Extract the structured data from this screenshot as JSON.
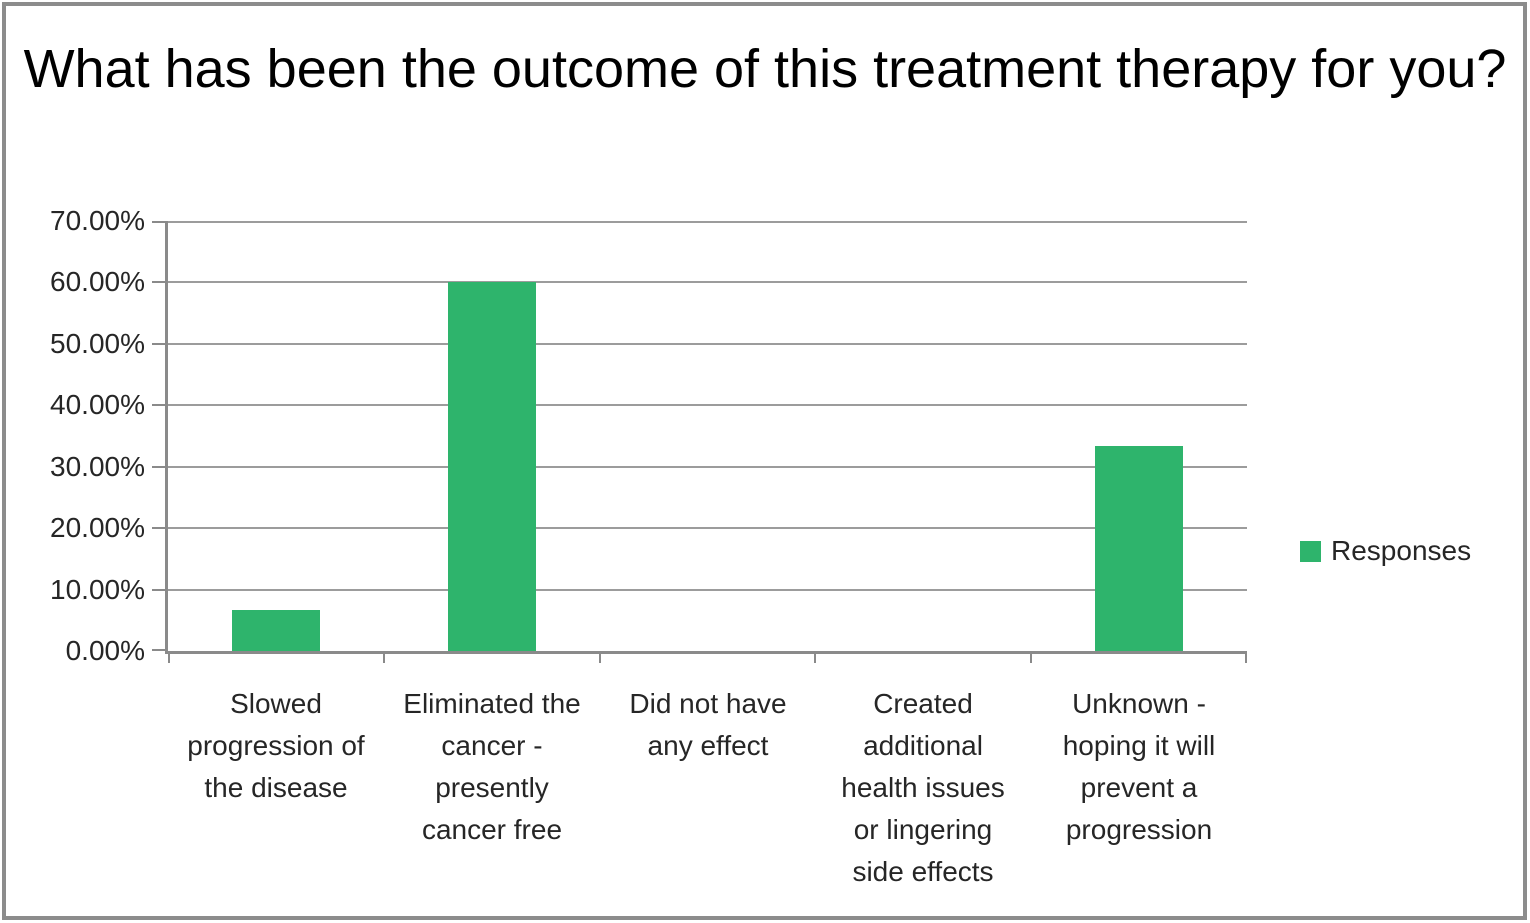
{
  "chart_data": {
    "type": "bar",
    "title": "What has been the outcome of this treatment therapy for you?",
    "categories": [
      "Slowed progression of the disease",
      "Eliminated the cancer - presently cancer free",
      "Did not have any effect",
      "Created additional health issues or lingering side effects",
      "Unknown - hoping it will prevent a progression"
    ],
    "category_label_lines": [
      [
        "Slowed",
        "progression of",
        "the disease"
      ],
      [
        "Eliminated the",
        "cancer -",
        "presently",
        "cancer free"
      ],
      [
        "Did not have",
        "any effect"
      ],
      [
        "Created",
        "additional",
        "health issues",
        "or lingering",
        "side effects"
      ],
      [
        "Unknown -",
        "hoping it will",
        "prevent a",
        "progression"
      ]
    ],
    "series": [
      {
        "name": "Responses",
        "values": [
          6.67,
          60.0,
          0.0,
          0.0,
          33.33
        ]
      }
    ],
    "y_tick_labels": [
      "70.00%",
      "60.00%",
      "50.00%",
      "40.00%",
      "30.00%",
      "20.00%",
      "10.00%",
      "0.00%"
    ],
    "ylim": [
      0,
      70
    ],
    "grid": true,
    "legend_position": "right",
    "colors": {
      "bar": "#2EB46C",
      "gridline": "#9C9C9C",
      "axis": "#8A8A8A",
      "text": "#262626",
      "title": "#000000",
      "frame_border": "#8C8C8C",
      "background": "#FFFFFF"
    }
  },
  "legend": {
    "label": "Responses"
  }
}
